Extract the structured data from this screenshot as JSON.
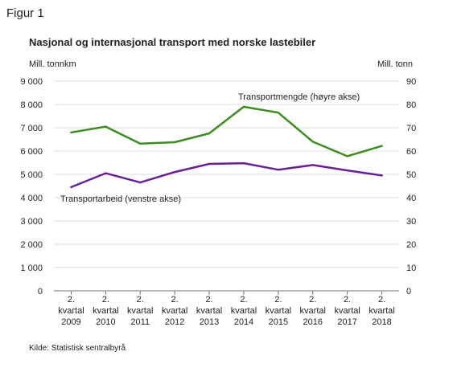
{
  "figure_label": "Figur 1",
  "source": "Kilde: Statistisk sentralbyrå",
  "chart_data": {
    "type": "line",
    "title": "Nasjonal og internasjonal transport med norske lastebiler",
    "y_left_label": "Mill. tonnkm",
    "y_right_label": "Mill. tonn",
    "y_left_lim": [
      0,
      9000
    ],
    "y_right_lim": [
      0,
      90
    ],
    "y_left_ticks": [
      "0",
      "1 000",
      "2 000",
      "3 000",
      "4 000",
      "5 000",
      "6 000",
      "7 000",
      "8 000",
      "9 000"
    ],
    "y_right_ticks": [
      "0",
      "10",
      "20",
      "30",
      "40",
      "50",
      "60",
      "70",
      "80",
      "90"
    ],
    "categories": [
      [
        "2.",
        "kvartal",
        "2009"
      ],
      [
        "2.",
        "kvartal",
        "2010"
      ],
      [
        "2.",
        "kvartal",
        "2011"
      ],
      [
        "2.",
        "kvartal",
        "2012"
      ],
      [
        "2.",
        "kvartal",
        "2013"
      ],
      [
        "2.",
        "kvartal",
        "2014"
      ],
      [
        "2.",
        "kvartal",
        "2015"
      ],
      [
        "2.",
        "kvartal",
        "2016"
      ],
      [
        "2.",
        "kvartal",
        "2017"
      ],
      [
        "2.",
        "kvartal",
        "2018"
      ]
    ],
    "grid": true,
    "series": [
      {
        "name": "Transportmengde  (høyre akse)",
        "axis": "right",
        "color": "#3c8c1e",
        "values": [
          68,
          70.5,
          63.2,
          63.8,
          67.6,
          79,
          76.5,
          64,
          57.8,
          62.2
        ]
      },
      {
        "name": "Transportarbeid  (venstre akse)",
        "axis": "left",
        "color": "#6a1f9a",
        "values": [
          4450,
          5050,
          4650,
          5100,
          5450,
          5480,
          5200,
          5400,
          5170,
          4950
        ]
      }
    ]
  }
}
